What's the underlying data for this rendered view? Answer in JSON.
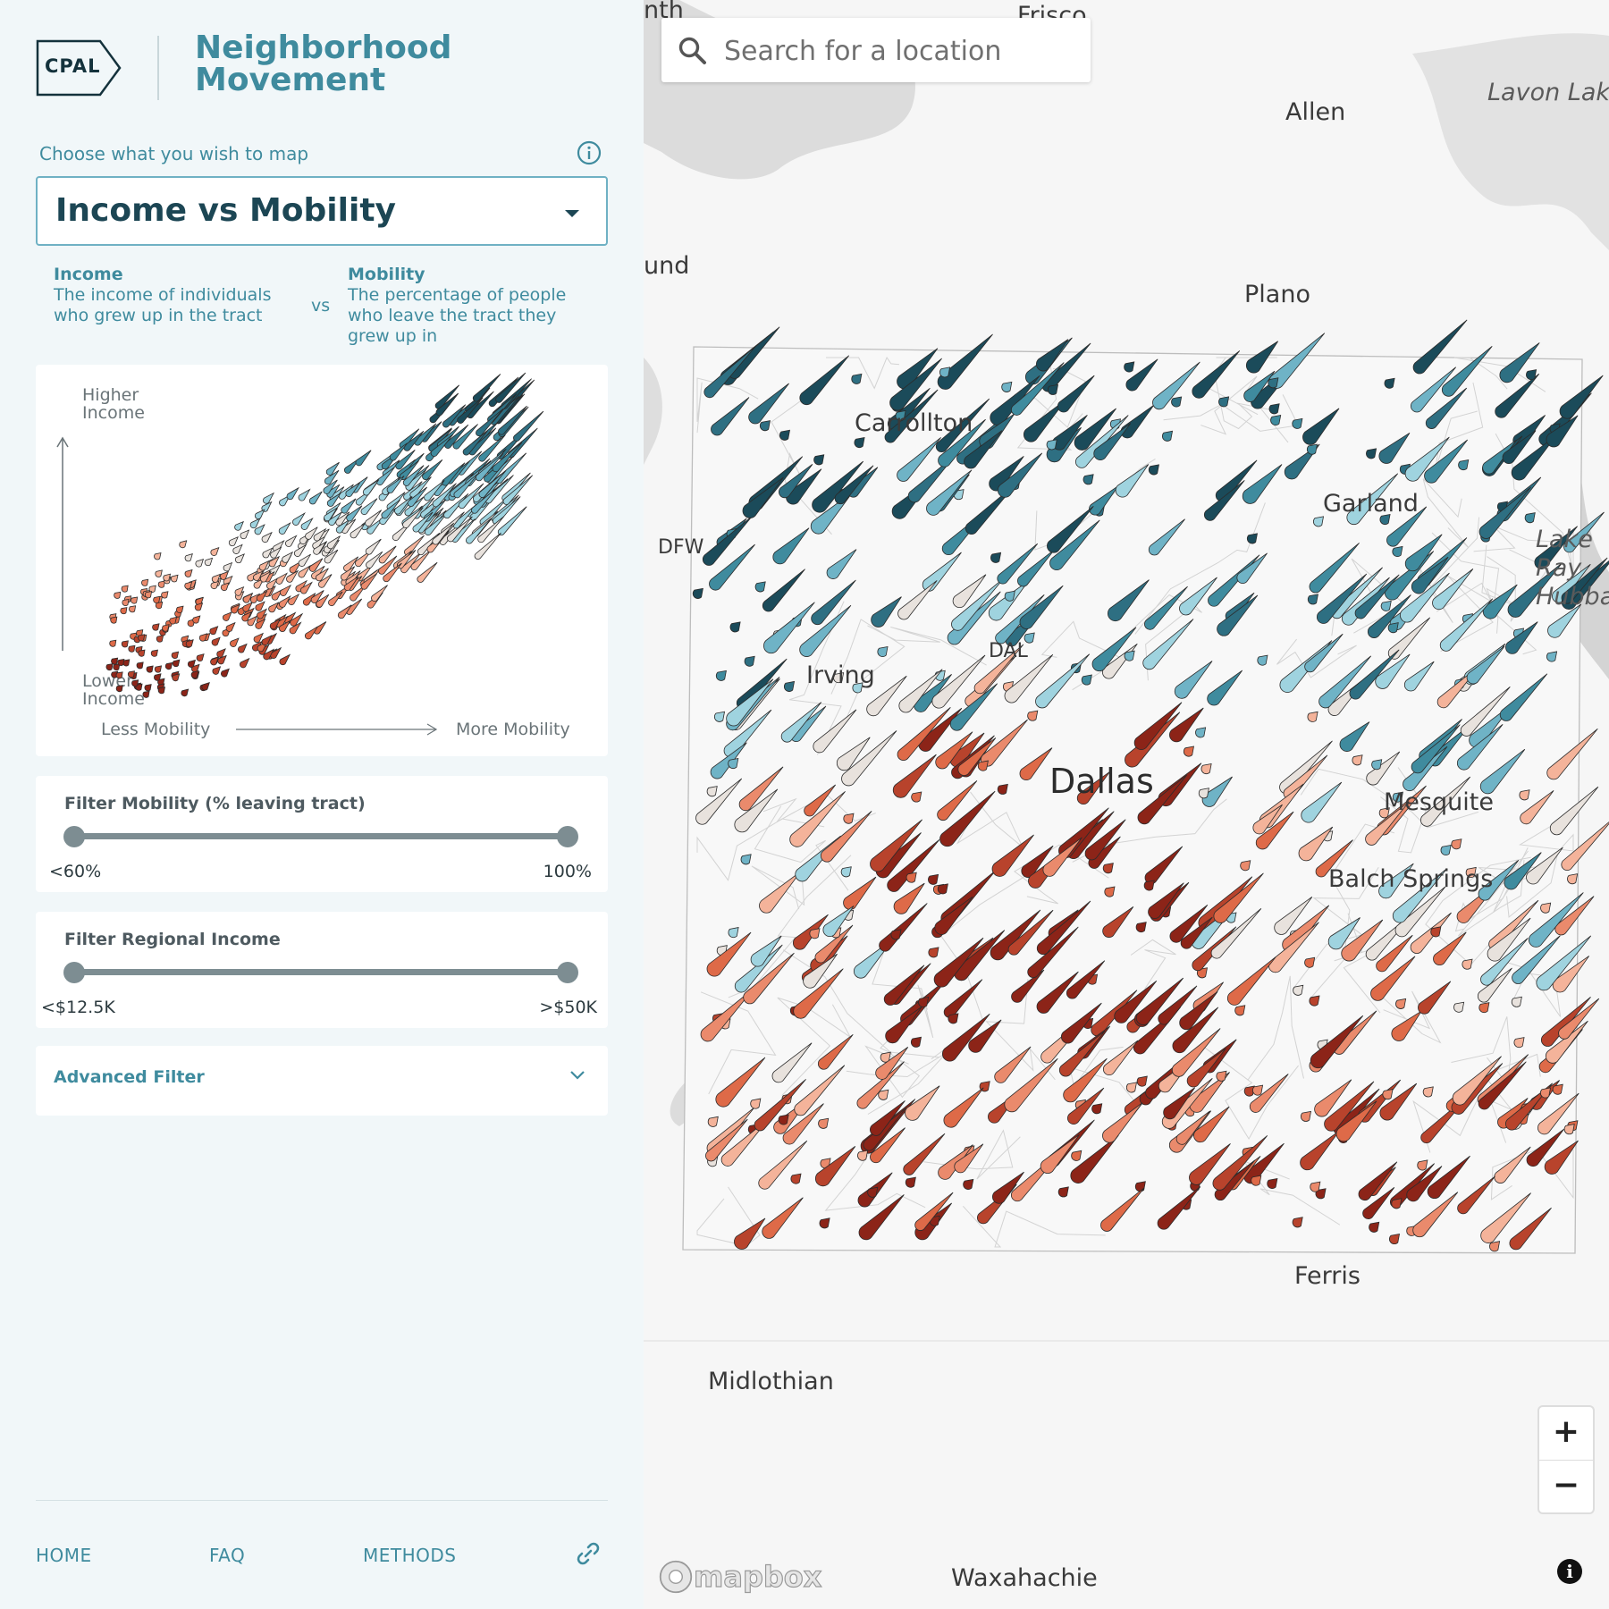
{
  "logo": {
    "text": "CPAL"
  },
  "app": {
    "title": "Neighborhood Movement"
  },
  "selector": {
    "prompt": "Choose what you wish to map",
    "selected": "Income vs Mobility"
  },
  "variables": {
    "left": {
      "title": "Income",
      "desc": "The income of individuals who grew up in the tract"
    },
    "vs": "vs",
    "right": {
      "title": "Mobility",
      "desc": "The percentage of people who leave the tract they grew up in"
    }
  },
  "legend": {
    "y_high": "Higher Income",
    "y_low": "Lower Income",
    "x_low": "Less Mobility",
    "x_high": "More Mobility"
  },
  "filters": {
    "mobility": {
      "title": "Filter Mobility (% leaving tract)",
      "min_label": "<60%",
      "max_label": "100%",
      "low": 0.0,
      "high": 1.0
    },
    "income": {
      "title": "Filter Regional Income",
      "min_label": "<$12.5K",
      "max_label": ">$50K",
      "low": 0.0,
      "high": 1.0
    }
  },
  "advanced_filter": {
    "label": "Advanced Filter"
  },
  "footer": {
    "home": "HOME",
    "faq": "FAQ",
    "methods": "METHODS"
  },
  "map": {
    "search_placeholder": "Search for a location",
    "places": {
      "frisco": "Frisco",
      "nth": "nth",
      "lavon_lake": "Lavon Lake",
      "allen": "Allen",
      "und": "und",
      "plano": "Plano",
      "carrollton": "Carrollton",
      "garland": "Garland",
      "dfw": "DFW",
      "lake_ray_hubbard": "Lake Ray Hubbard",
      "dal": "DAL",
      "irving": "Irving",
      "dallas": "Dallas",
      "mesquite": "Mesquite",
      "balch_springs": "Balch Springs",
      "ferris": "Ferris",
      "midlothian": "Midlothian",
      "waxahachie": "Waxahachie"
    },
    "zoom_in": "+",
    "zoom_out": "−",
    "attribution": "i",
    "brand": "mapbox"
  },
  "colors": {
    "teal_dark": "#1b4b5a",
    "teal": "#3f8b9e",
    "teal_light": "#9fd3df",
    "neutral": "#e8e2dd",
    "orange_light": "#f4b39a",
    "orange": "#de6a48",
    "red_dark": "#8c2418"
  },
  "icons": {
    "info": "info-icon",
    "caret": "caret-down-icon",
    "chevron": "chevron-down-icon",
    "search": "search-icon",
    "link": "link-icon"
  }
}
